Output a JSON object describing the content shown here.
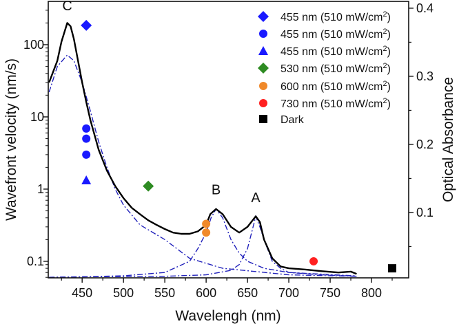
{
  "chart_data": {
    "type": "line",
    "xlabel": "Wavelengh (nm)",
    "ylabel": "Wavefront velocity (nm/s)",
    "y2label": "Optical Absorbance",
    "xlim": [
      409,
      845
    ],
    "ylim": [
      0.059,
      398
    ],
    "yscale": "log",
    "y2lim": [
      0.004,
      0.41
    ],
    "xticks": [
      450,
      500,
      550,
      600,
      650,
      700,
      750,
      800
    ],
    "yticks": [
      {
        "v": 0.1,
        "label": "0.1"
      },
      {
        "v": 1,
        "label": "1"
      },
      {
        "v": 10,
        "label": "10"
      },
      {
        "v": 100,
        "label": "100"
      }
    ],
    "y2ticks": [
      {
        "v": 0.1,
        "label": "0.1"
      },
      {
        "v": 0.2,
        "label": "0.2"
      },
      {
        "v": 0.3,
        "label": "0.3"
      },
      {
        "v": 0.4,
        "label": "0.4"
      }
    ],
    "legend_position": "top-right",
    "peak_labels": [
      {
        "text": "C",
        "x": 432,
        "y": 300
      },
      {
        "text": "B",
        "x": 612,
        "y": 0.85
      },
      {
        "text": "A",
        "x": 660,
        "y": 0.66
      }
    ],
    "absorbance_curve": {
      "name": "Absorbance spectrum",
      "color": "#000000",
      "x": [
        410,
        420,
        425,
        432,
        436,
        440,
        445,
        450,
        455,
        460,
        470,
        480,
        490,
        500,
        510,
        520,
        530,
        540,
        550,
        560,
        570,
        580,
        590,
        600,
        605,
        612,
        620,
        630,
        640,
        650,
        660,
        665,
        670,
        680,
        690,
        700,
        720,
        740,
        760,
        775,
        782
      ],
      "y": [
        30,
        60,
        110,
        200,
        180,
        120,
        60,
        30,
        16,
        9,
        3.5,
        1.8,
        1.1,
        0.75,
        0.55,
        0.45,
        0.37,
        0.32,
        0.28,
        0.25,
        0.24,
        0.24,
        0.26,
        0.32,
        0.45,
        0.53,
        0.45,
        0.3,
        0.25,
        0.3,
        0.42,
        0.35,
        0.2,
        0.11,
        0.085,
        0.08,
        0.077,
        0.073,
        0.07,
        0.072,
        0.067
      ]
    },
    "fit_curves": [
      {
        "name": "Fit C",
        "color": "#2222bb",
        "x": [
          410,
          420,
          432,
          440,
          450,
          460,
          470,
          480,
          490,
          500,
          520,
          550,
          580,
          620,
          700,
          780
        ],
        "y": [
          22,
          50,
          72,
          60,
          30,
          12,
          4.5,
          2,
          1.0,
          0.6,
          0.32,
          0.2,
          0.11,
          0.08,
          0.065,
          0.062
        ]
      },
      {
        "name": "Fit B",
        "color": "#2222bb",
        "x": [
          410,
          450,
          500,
          550,
          580,
          590,
          600,
          606,
          612,
          620,
          630,
          640,
          650,
          670,
          700,
          780
        ],
        "y": [
          0.06,
          0.061,
          0.063,
          0.07,
          0.1,
          0.15,
          0.25,
          0.4,
          0.53,
          0.4,
          0.2,
          0.13,
          0.1,
          0.08,
          0.07,
          0.063
        ]
      },
      {
        "name": "Fit A",
        "color": "#2222bb",
        "x": [
          410,
          450,
          550,
          600,
          630,
          640,
          650,
          655,
          660,
          665,
          670,
          680,
          690,
          700,
          740,
          782
        ],
        "y": [
          0.06,
          0.061,
          0.062,
          0.065,
          0.075,
          0.09,
          0.15,
          0.25,
          0.42,
          0.3,
          0.2,
          0.1,
          0.08,
          0.07,
          0.065,
          0.062
        ]
      }
    ],
    "points": [
      {
        "label": "455 nm (510 mW/cm²)",
        "marker": "diamond",
        "color": "#1a1aff",
        "x": [
          455
        ],
        "y": [
          185
        ]
      },
      {
        "label": "455 nm (510 mW/cm²)",
        "marker": "circle",
        "color": "#1a1aff",
        "x": [
          455,
          455,
          455
        ],
        "y": [
          6.9,
          5.0,
          3.0
        ]
      },
      {
        "label": "455 nm (510 mW/cm²)",
        "marker": "triangle",
        "color": "#1a1aff",
        "x": [
          455
        ],
        "y": [
          1.33
        ]
      },
      {
        "label": "530 nm (510 mW/cm²)",
        "marker": "diamond",
        "color": "#2e8b22",
        "x": [
          530
        ],
        "y": [
          1.1
        ]
      },
      {
        "label": "600 nm (510 mW/cm²)",
        "marker": "circle",
        "color": "#f0892a",
        "x": [
          600,
          600
        ],
        "y": [
          0.33,
          0.25
        ]
      },
      {
        "label": "730 nm (510 mW/cm²)",
        "marker": "circle",
        "color": "#ff2020",
        "x": [
          730
        ],
        "y": [
          0.1
        ]
      },
      {
        "label": "Dark",
        "marker": "square",
        "color": "#000000",
        "x": [
          825
        ],
        "y": [
          0.08
        ]
      }
    ]
  }
}
